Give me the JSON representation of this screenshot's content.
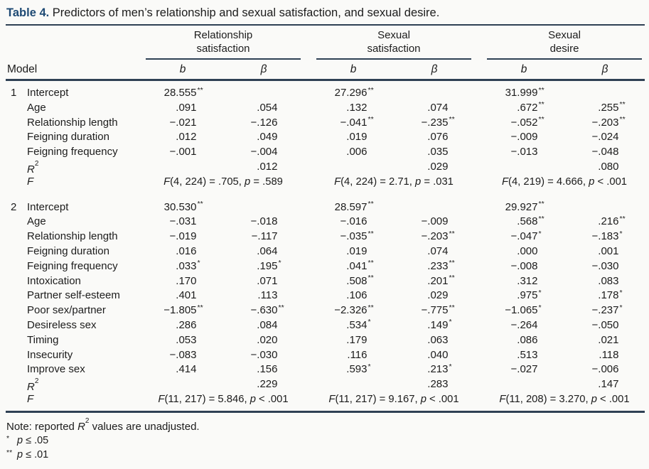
{
  "title": {
    "label": "Table 4.",
    "text": " Predictors of men’s relationship and sexual satisfaction, and sexual desire."
  },
  "table": {
    "model_header": "Model",
    "col_b": "b",
    "col_beta": "β",
    "r2_base": "R",
    "r2_sup": "2",
    "f_label": "F",
    "groups": [
      {
        "line1": "Relationship",
        "line2": "satisfaction"
      },
      {
        "line1": "Sexual",
        "line2": "satisfaction"
      },
      {
        "line1": "Sexual",
        "line2": "desire"
      }
    ],
    "models": [
      {
        "number": "1",
        "rows": [
          {
            "label": "Intercept",
            "cells": [
              "28.555**",
              "",
              "27.296**",
              "",
              "31.999**",
              ""
            ]
          },
          {
            "label": "Age",
            "cells": [
              ".091",
              ".054",
              ".132",
              ".074",
              ".672**",
              ".255**"
            ]
          },
          {
            "label": "Relationship length",
            "cells": [
              "−.021",
              "−.126",
              "−.041**",
              "−.235**",
              "−.052**",
              "−.203**"
            ]
          },
          {
            "label": "Feigning duration",
            "cells": [
              ".012",
              ".049",
              ".019",
              ".076",
              "−.009",
              "−.024"
            ]
          },
          {
            "label": "Feigning frequency",
            "cells": [
              "−.001",
              "−.004",
              ".006",
              ".035",
              "−.013",
              "−.048"
            ]
          },
          {
            "type": "r2",
            "cells": [
              "",
              ".012",
              "",
              ".029",
              "",
              ".080"
            ]
          },
          {
            "type": "f",
            "f": [
              "F(4, 224) = .705, p = .589",
              "F(4, 224) = 2.71, p = .031",
              "F(4, 219) = 4.666, p < .001"
            ]
          }
        ]
      },
      {
        "number": "2",
        "rows": [
          {
            "label": "Intercept",
            "cells": [
              "30.530**",
              "",
              "28.597**",
              "",
              "29.927**",
              ""
            ]
          },
          {
            "label": "Age",
            "cells": [
              "−.031",
              "−.018",
              "−.016",
              "−.009",
              ".568**",
              ".216**"
            ]
          },
          {
            "label": "Relationship length",
            "cells": [
              "−.019",
              "−.117",
              "−.035**",
              "−.203**",
              "−.047*",
              "−.183*"
            ]
          },
          {
            "label": "Feigning duration",
            "cells": [
              ".016",
              ".064",
              ".019",
              ".074",
              ".000",
              ".001"
            ]
          },
          {
            "label": "Feigning frequency",
            "cells": [
              ".033*",
              ".195*",
              ".041**",
              ".233**",
              "−.008",
              "−.030"
            ]
          },
          {
            "label": "Intoxication",
            "cells": [
              ".170",
              ".071",
              ".508**",
              ".201**",
              ".312",
              ".083"
            ]
          },
          {
            "label": "Partner self-esteem",
            "cells": [
              ".401",
              ".113",
              ".106",
              ".029",
              ".975*",
              ".178*"
            ]
          },
          {
            "label": "Poor sex/partner",
            "cells": [
              "−1.805**",
              "−.630**",
              "−2.326**",
              "−.775**",
              "−1.065*",
              "−.237*"
            ]
          },
          {
            "label": "Desireless sex",
            "cells": [
              ".286",
              ".084",
              ".534*",
              ".149*",
              "−.264",
              "−.050"
            ]
          },
          {
            "label": "Timing",
            "cells": [
              ".053",
              ".020",
              ".179",
              ".063",
              ".086",
              ".021"
            ]
          },
          {
            "label": "Insecurity",
            "cells": [
              "−.083",
              "−.030",
              ".116",
              ".040",
              ".513",
              ".118"
            ]
          },
          {
            "label": "Improve sex",
            "cells": [
              ".414",
              ".156",
              ".593*",
              ".213*",
              "−.027",
              "−.006"
            ]
          },
          {
            "type": "r2",
            "cells": [
              "",
              ".229",
              "",
              ".283",
              "",
              ".147"
            ]
          },
          {
            "type": "f",
            "f": [
              "F(11, 217) = 5.846, p < .001",
              "F(11, 217) = 9.167, p < .001",
              "F(11, 208) = 3.270, p < .001"
            ]
          }
        ]
      }
    ]
  },
  "notes": {
    "note_pre": "Note: reported ",
    "note_r": "R",
    "note_sup": "2",
    "note_post": " values are unadjusted.",
    "sig": [
      {
        "marker": "*",
        "p": "p",
        "rest": " ≤ .05"
      },
      {
        "marker": "**",
        "p": "p",
        "rest": " ≤ .01"
      }
    ]
  }
}
